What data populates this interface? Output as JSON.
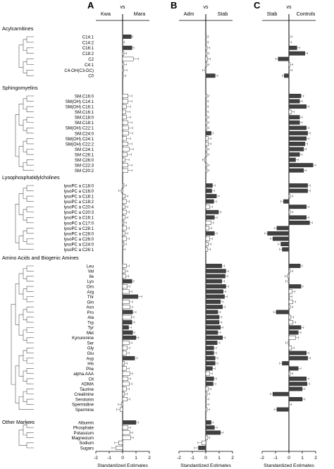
{
  "chart_data": [
    {
      "type": "bar",
      "panel_label": "A",
      "comparison": {
        "left": "Kwa",
        "vs": "vs",
        "right": "Mara"
      },
      "xlabel": "Standardized Estimates",
      "xlim": [
        -2,
        2
      ],
      "xticks": [
        -2,
        -1,
        0,
        1,
        2
      ],
      "orientation": "horizontal",
      "groups": [
        {
          "title": "Acylcarnitines",
          "categories": [
            "C14:1",
            "C14:2",
            "C16:1",
            "C18:2",
            "C2",
            "C4:1",
            "C4-OH(C3-DC)",
            "C0"
          ],
          "values": [
            0.65,
            0.0,
            0.7,
            0.1,
            0.8,
            0.1,
            0.08,
            0.05
          ],
          "errors": [
            0.12,
            0.15,
            0.15,
            0.2,
            0.4,
            0.2,
            0.25,
            0.2
          ],
          "filled": [
            true,
            false,
            true,
            false,
            false,
            false,
            false,
            false
          ]
        },
        {
          "title": "Sphingomyelins",
          "categories": [
            "SM.C16:0",
            "SM(OH) C14:1",
            "SM(OH) C16:1",
            "SM.C16:1",
            "SM.C18:0",
            "SM.C18:1",
            "SM(OH) C22:1",
            "SM.C24:0",
            "SM(OH) C24:1",
            "SM(OH) C22:2",
            "SM C24:1",
            "SM C26:1",
            "SM C26:0",
            "SM C22:3",
            "SM C20:2"
          ],
          "values": [
            0.4,
            0.4,
            0.3,
            0.25,
            0.3,
            0.4,
            0.45,
            0.45,
            0.3,
            0.4,
            0.5,
            0.35,
            0.2,
            0.4,
            0.4
          ],
          "errors": [
            0.3,
            0.3,
            0.3,
            0.3,
            0.3,
            0.3,
            0.3,
            0.3,
            0.3,
            0.3,
            0.3,
            0.3,
            0.3,
            0.3,
            0.3
          ],
          "filled": [
            false,
            false,
            false,
            false,
            false,
            false,
            false,
            false,
            false,
            false,
            false,
            false,
            false,
            false,
            false
          ]
        },
        {
          "title": "Lysophosphatidylcholines",
          "categories": [
            "lysoPC a C18:0",
            "lysoPC a C16:0",
            "lysoPC a C18:1",
            "lysoPC a C18:2",
            "lysoPC a C20:4",
            "lysoPC a C20:3",
            "lysoPC a C16:1",
            "lysoPC a C17:0",
            "lysoPC a C28:1",
            "lysoPC a C28:0",
            "lysoPC a C26:0",
            "lysoPC a C24:0",
            "lysoPC a C26:1"
          ],
          "values": [
            0.1,
            -0.1,
            0.2,
            0.3,
            0.2,
            0.3,
            0.2,
            0.1,
            0.3,
            0.2,
            0.3,
            0.1,
            0.0
          ],
          "errors": [
            0.2,
            0.2,
            0.2,
            0.2,
            0.2,
            0.2,
            0.2,
            0.2,
            0.2,
            0.2,
            0.2,
            0.2,
            0.2
          ],
          "filled": [
            false,
            false,
            false,
            false,
            false,
            false,
            false,
            false,
            false,
            false,
            false,
            false,
            false
          ]
        },
        {
          "title": "Amino Acids and Biogenic Amines",
          "categories": [
            "Leu",
            "Val",
            "Ile",
            "Lys",
            "Orn",
            "Arg",
            "Thr",
            "Gln",
            "Asn",
            "Pro",
            "Ala",
            "Trp",
            "Tyr",
            "Met",
            "Kynurenine",
            "Ser",
            "Gly",
            "Glu",
            "Asp",
            "His",
            "Phe",
            "alpha.AAA",
            "Cit",
            "ADMA",
            "Taurine",
            "Creatinine",
            "Serotonin",
            "Spermidine",
            "Spermine"
          ],
          "values": [
            0.3,
            0.2,
            0.25,
            0.7,
            0.35,
            0.5,
            1.15,
            0.5,
            0.55,
            0.75,
            0.65,
            0.7,
            0.45,
            0.75,
            1.0,
            0.5,
            0.35,
            0.3,
            0.9,
            0.15,
            0.3,
            0.55,
            0.4,
            0.5,
            0.3,
            0.15,
            0.35,
            -0.1,
            -0.2
          ],
          "errors": [
            0.2,
            0.2,
            0.2,
            0.15,
            0.2,
            0.2,
            0.3,
            0.25,
            0.2,
            0.25,
            0.2,
            0.2,
            0.2,
            0.15,
            0.2,
            0.2,
            0.2,
            0.2,
            0.2,
            0.2,
            0.2,
            0.2,
            0.2,
            0.2,
            0.2,
            0.2,
            0.2,
            0.25,
            0.25
          ],
          "filled": [
            false,
            false,
            false,
            true,
            false,
            false,
            true,
            false,
            false,
            true,
            false,
            true,
            true,
            true,
            true,
            false,
            false,
            false,
            true,
            false,
            false,
            false,
            false,
            false,
            false,
            false,
            false,
            false,
            false
          ]
        },
        {
          "title": "Other Markers",
          "categories": [
            "Albumin",
            "Phosphate",
            "Potassium",
            "Magnesium",
            "Sodium",
            "Sugars"
          ],
          "values": [
            1.0,
            0.4,
            0.55,
            0.6,
            -0.3,
            -0.5
          ],
          "errors": [
            0.2,
            0.2,
            0.2,
            0.2,
            0.3,
            0.3
          ],
          "filled": [
            true,
            false,
            false,
            false,
            false,
            false
          ]
        }
      ]
    },
    {
      "type": "bar",
      "panel_label": "B",
      "comparison": {
        "left": "Adm",
        "vs": "vs",
        "right": "Stab"
      },
      "xlabel": "Standardized Estimates",
      "xlim": [
        -2,
        2
      ],
      "xticks": [
        -2,
        -1,
        0,
        1,
        2
      ],
      "orientation": "horizontal",
      "groups": [
        {
          "title": "Acylcarnitines",
          "values": [
            0.05,
            0.05,
            0.1,
            0.1,
            0.15,
            0.1,
            -0.05,
            0.7
          ],
          "errors": [
            0.15,
            0.15,
            0.2,
            0.15,
            0.2,
            0.15,
            0.2,
            0.2
          ],
          "filled": [
            false,
            false,
            false,
            false,
            false,
            false,
            false,
            true
          ]
        },
        {
          "title": "Sphingomyelins",
          "values": [
            0.1,
            0.05,
            0.05,
            0.05,
            0.1,
            0.1,
            0.1,
            0.4,
            0.2,
            0.2,
            0.1,
            0.1,
            -0.1,
            0.1,
            0.1
          ],
          "errors": [
            0.15,
            0.15,
            0.15,
            0.15,
            0.15,
            0.15,
            0.15,
            0.15,
            0.2,
            0.2,
            0.15,
            0.15,
            0.15,
            0.15,
            0.15
          ],
          "filled": [
            false,
            false,
            false,
            false,
            false,
            false,
            false,
            true,
            false,
            false,
            false,
            false,
            false,
            false,
            false
          ]
        },
        {
          "title": "Lysophosphatidylcholines",
          "values": [
            0.5,
            0.45,
            0.8,
            0.6,
            0.3,
            0.95,
            0.65,
            0.4,
            0.25,
            0.65,
            0.3,
            0.2,
            0.15
          ],
          "errors": [
            0.2,
            0.2,
            0.2,
            0.2,
            0.2,
            0.2,
            0.2,
            0.2,
            0.2,
            0.2,
            0.2,
            0.2,
            0.2
          ],
          "filled": [
            true,
            true,
            true,
            true,
            false,
            true,
            true,
            false,
            false,
            true,
            false,
            false,
            false
          ]
        },
        {
          "title": "Amino Acids and Biogenic Amines",
          "values": [
            1.2,
            1.5,
            1.45,
            1.2,
            1.5,
            1.3,
            1.4,
            1.1,
            1.25,
            0.9,
            1.0,
            1.0,
            1.1,
            0.9,
            1.25,
            0.85,
            0.6,
            0.6,
            0.7,
            0.7,
            0.5,
            0.3,
            0.6,
            0.55,
            0.2,
            0.1,
            0.05,
            0.05,
            0.1
          ],
          "errors": [
            0.2,
            0.2,
            0.2,
            0.2,
            0.2,
            0.2,
            0.2,
            0.2,
            0.2,
            0.2,
            0.2,
            0.2,
            0.2,
            0.2,
            0.2,
            0.2,
            0.2,
            0.2,
            0.2,
            0.2,
            0.2,
            0.2,
            0.2,
            0.2,
            0.2,
            0.2,
            0.2,
            0.2,
            0.2
          ],
          "filled": [
            true,
            true,
            true,
            true,
            true,
            true,
            true,
            true,
            true,
            true,
            true,
            true,
            true,
            true,
            true,
            true,
            true,
            true,
            true,
            true,
            true,
            false,
            true,
            true,
            false,
            false,
            false,
            false,
            false
          ]
        },
        {
          "title": "Other Markers",
          "values": [
            0.4,
            0.65,
            1.1,
            0.15,
            -0.3,
            -0.55
          ],
          "errors": [
            0.15,
            0.2,
            0.2,
            0.15,
            0.3,
            0.3
          ],
          "filled": [
            true,
            true,
            true,
            false,
            false,
            true
          ]
        }
      ]
    },
    {
      "type": "bar",
      "panel_label": "C",
      "comparison": {
        "left": "Stab",
        "vs": "vs",
        "right": "Controls"
      },
      "xlabel": "Standardized Estimates",
      "xlim": [
        -2,
        2
      ],
      "xticks": [
        -2,
        -1,
        0,
        1,
        2
      ],
      "orientation": "horizontal",
      "groups": [
        {
          "title": "Acylcarnitines",
          "values": [
            0.05,
            0.0,
            0.6,
            1.2,
            -0.8,
            0.1,
            0.05,
            -0.35
          ],
          "errors": [
            0.2,
            0.2,
            0.2,
            0.2,
            0.2,
            0.2,
            0.2,
            0.15
          ],
          "filled": [
            false,
            false,
            true,
            true,
            true,
            false,
            false,
            true
          ]
        },
        {
          "title": "Sphingomyelins",
          "values": [
            0.9,
            0.8,
            1.3,
            0.2,
            0.8,
            0.8,
            1.3,
            1.4,
            1.3,
            1.2,
            1.1,
            0.8,
            0.5,
            1.8,
            1.1
          ],
          "errors": [
            0.2,
            0.2,
            0.2,
            0.2,
            0.2,
            0.2,
            0.2,
            0.2,
            0.2,
            0.2,
            0.2,
            0.2,
            0.2,
            0.2,
            0.2
          ],
          "filled": [
            true,
            true,
            true,
            false,
            true,
            true,
            true,
            true,
            true,
            true,
            true,
            true,
            true,
            true,
            true
          ]
        },
        {
          "title": "Lysophosphatidylcholines",
          "values": [
            1.4,
            1.4,
            0.1,
            -0.4,
            1.3,
            0.1,
            1.3,
            1.55,
            -0.9,
            -1.6,
            -1.2,
            -0.6,
            -0.5
          ],
          "errors": [
            0.2,
            0.2,
            0.2,
            0.2,
            0.2,
            0.2,
            0.2,
            0.2,
            0.2,
            0.2,
            0.2,
            0.2,
            0.2
          ],
          "filled": [
            true,
            true,
            false,
            true,
            true,
            false,
            true,
            true,
            true,
            true,
            true,
            true,
            true
          ]
        },
        {
          "title": "Amino Acids and Biogenic Amines",
          "values": [
            0.85,
            0.1,
            -0.1,
            -0.05,
            0.9,
            0.25,
            0.05,
            0.3,
            0.1,
            -0.95,
            0.15,
            0.3,
            0.9,
            0.7,
            0.5,
            -0.05,
            0.2,
            1.3,
            1.4,
            -0.5,
            0.7,
            0.1,
            1.3,
            1.35,
            1.0,
            -1.2,
            1.0,
            0.0,
            -0.9
          ],
          "errors": [
            0.15,
            0.2,
            0.2,
            0.2,
            0.15,
            0.2,
            0.2,
            0.2,
            0.2,
            0.2,
            0.2,
            0.2,
            0.2,
            0.2,
            0.2,
            0.2,
            0.2,
            0.2,
            0.2,
            0.2,
            0.2,
            0.2,
            0.2,
            0.2,
            0.2,
            0.2,
            0.2,
            0.2,
            0.2
          ],
          "filled": [
            true,
            false,
            false,
            false,
            true,
            false,
            false,
            false,
            false,
            true,
            false,
            false,
            true,
            true,
            false,
            false,
            false,
            true,
            true,
            true,
            true,
            false,
            true,
            true,
            true,
            true,
            true,
            false,
            true
          ]
        }
      ]
    }
  ],
  "colors": {
    "filled_bar": "#404040",
    "open_bar": "#ffffff",
    "line": "#000000",
    "error_bar": "#777777"
  }
}
